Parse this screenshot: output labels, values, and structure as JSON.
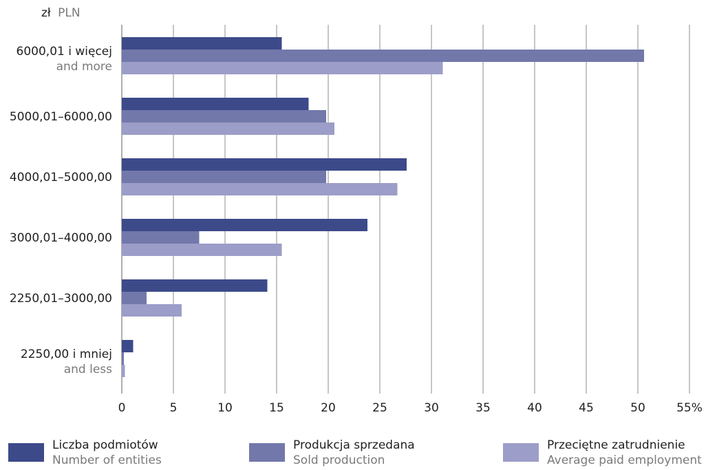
{
  "colors": {
    "entities": "#3d4a8a",
    "production": "#7278aa",
    "employment": "#9c9dc8",
    "grid": "#8c8c8c",
    "text": "#222222",
    "subtext": "#7a7a7a"
  },
  "chart_data": {
    "type": "bar",
    "orientation": "horizontal",
    "unit_label": {
      "currency": "zł",
      "currency_en": "PLN"
    },
    "x_ticks": [
      "0",
      "5",
      "10",
      "15",
      "20",
      "25",
      "30",
      "35",
      "40",
      "45",
      "50",
      "55%"
    ],
    "xlim": [
      0,
      55
    ],
    "grid": true,
    "categories": [
      {
        "label": "6000,01 i więcej",
        "label_en": "and more"
      },
      {
        "label": "5000,01–6000,00",
        "label_en": ""
      },
      {
        "label": "4000,01–5000,00",
        "label_en": ""
      },
      {
        "label": "3000,01–4000,00",
        "label_en": ""
      },
      {
        "label": "2250,01–3000,00",
        "label_en": ""
      },
      {
        "label": "2250,00 i mniej",
        "label_en": "and less"
      }
    ],
    "series": [
      {
        "name": "Liczba podmiotów",
        "name_en": "Number of entities",
        "values": [
          15.5,
          18.1,
          27.6,
          23.8,
          14.1,
          1.1
        ]
      },
      {
        "name": "Produkcja sprzedana",
        "name_en": "Sold production",
        "values": [
          50.6,
          19.8,
          19.8,
          7.5,
          2.4,
          0.2
        ]
      },
      {
        "name": "Przeciętne zatrudnienie",
        "name_en": "Average paid employment",
        "values": [
          31.1,
          20.6,
          26.7,
          15.5,
          5.8,
          0.3
        ]
      }
    ],
    "legend_position": "bottom"
  }
}
